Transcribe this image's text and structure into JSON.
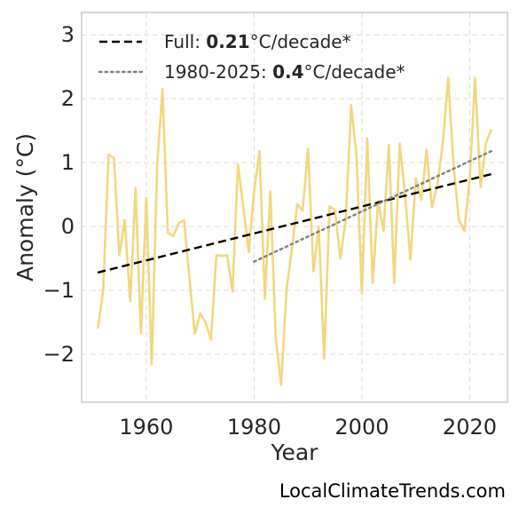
{
  "chart_data": {
    "type": "line",
    "title": "",
    "xlabel": "Year",
    "ylabel": "Anomaly (°C)",
    "xlim": [
      1948,
      2027
    ],
    "ylim": [
      -2.75,
      3.35
    ],
    "x_ticks": [
      1960,
      1980,
      2000,
      2020
    ],
    "x_tick_labels": [
      "1960",
      "1980",
      "2000",
      "2020"
    ],
    "y_ticks": [
      -2,
      -1,
      0,
      1,
      2,
      3
    ],
    "y_tick_labels": [
      "−2",
      "−1",
      "0",
      "1",
      "2",
      "3"
    ],
    "grid": true,
    "legend_position": "top-left",
    "series": [
      {
        "style": "solid",
        "color": "#f2d77e",
        "x": [
          1951,
          1952,
          1953,
          1954,
          1955,
          1956,
          1957,
          1958,
          1959,
          1960,
          1961,
          1962,
          1963,
          1964,
          1965,
          1966,
          1967,
          1968,
          1969,
          1970,
          1971,
          1972,
          1973,
          1974,
          1975,
          1976,
          1977,
          1978,
          1979,
          1980,
          1981,
          1982,
          1983,
          1984,
          1985,
          1986,
          1987,
          1988,
          1989,
          1990,
          1991,
          1992,
          1993,
          1994,
          1995,
          1996,
          1997,
          1998,
          1999,
          2000,
          2001,
          2002,
          2003,
          2004,
          2005,
          2006,
          2007,
          2008,
          2009,
          2010,
          2011,
          2012,
          2013,
          2014,
          2015,
          2016,
          2017,
          2018,
          2019,
          2020,
          2021,
          2022,
          2023,
          2024
        ],
        "values": [
          -1.6,
          -1.0,
          1.13,
          1.07,
          -0.45,
          0.1,
          -1.17,
          0.6,
          -1.67,
          0.45,
          -2.16,
          0.95,
          2.15,
          -0.1,
          -0.15,
          0.05,
          0.1,
          -0.8,
          -1.68,
          -1.36,
          -1.5,
          -1.77,
          -0.45,
          -0.46,
          -0.45,
          -1.02,
          0.97,
          0.3,
          -0.4,
          0.55,
          1.18,
          -1.13,
          0.55,
          -1.72,
          -2.48,
          -1.0,
          -0.35,
          0.35,
          0.25,
          1.22,
          -0.7,
          0.0,
          -2.07,
          0.32,
          0.25,
          -0.5,
          0.1,
          1.9,
          1.1,
          -1.05,
          1.38,
          -0.88,
          0.4,
          -0.07,
          1.28,
          -0.88,
          1.3,
          0.5,
          -0.52,
          0.75,
          0.42,
          1.2,
          0.3,
          0.65,
          1.3,
          2.33,
          0.95,
          0.1,
          -0.07,
          0.75,
          2.33,
          0.62,
          1.3,
          1.52
        ]
      },
      {
        "style": "dashed",
        "color": "#000000",
        "x": [
          1951,
          2024
        ],
        "values": [
          -0.72,
          0.82
        ]
      },
      {
        "style": "dotted",
        "color": "#808080",
        "x": [
          1980,
          2024
        ],
        "values": [
          -0.55,
          1.18
        ]
      }
    ],
    "legend": [
      {
        "style": "dashed",
        "color": "#000000",
        "prefix": "Full: ",
        "bold": "0.21",
        "suffix": "°C/decade*"
      },
      {
        "style": "dotted",
        "color": "#808080",
        "prefix": "1980-2025: ",
        "bold": "0.4",
        "suffix": "°C/decade*"
      }
    ]
  },
  "credit": "LocalClimateTrends.com"
}
